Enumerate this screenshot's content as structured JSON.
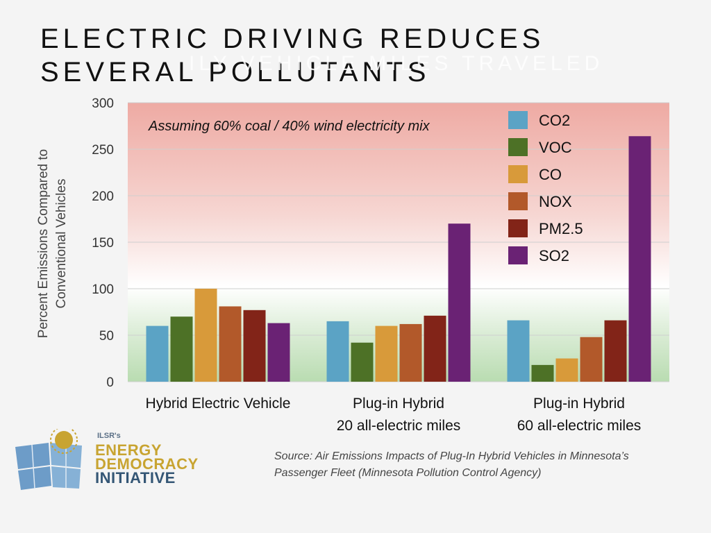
{
  "slide": {
    "title": "ELECTRIC DRIVING REDUCES SEVERAL POLLUTANTS",
    "ghost_text": "ILY VEHICLE MILES TRAVELED",
    "source": "Source: Air Emissions Impacts of Plug-In Hybrid Vehicles in Minnesota’s Passenger Fleet (Minnesota Pollution Control Agency)",
    "logo": {
      "tagline": "ILSR's",
      "line1": "ENERGY",
      "line2": "DEMOCRACY",
      "line3": "INITIATIVE"
    }
  },
  "chart_data": {
    "type": "bar",
    "ylabel": "Percent Emissions Compared to Conventional Vehicles",
    "ylabel_lines": [
      "Percent Emissions Compared to",
      "Conventional Vehicles"
    ],
    "ylim": [
      0,
      300
    ],
    "yticks": [
      0,
      50,
      100,
      150,
      200,
      250,
      300
    ],
    "grid": true,
    "annotation": "Assuming 60% coal / 40% wind electricity mix",
    "legend_position": "top-right",
    "categories": [
      [
        "Hybrid Electric Vehicle"
      ],
      [
        "Plug-in Hybrid",
        "20 all-electric miles"
      ],
      [
        "Plug-in Hybrid",
        "60 all-electric miles"
      ]
    ],
    "series": [
      {
        "name": "CO2",
        "color": "#5ba3c5",
        "values": [
          60,
          65,
          66
        ]
      },
      {
        "name": "VOC",
        "color": "#4d7126",
        "values": [
          70,
          42,
          18
        ]
      },
      {
        "name": "CO",
        "color": "#d89a3a",
        "values": [
          100,
          60,
          25
        ]
      },
      {
        "name": "NOX",
        "color": "#b2592a",
        "values": [
          81,
          62,
          48
        ]
      },
      {
        "name": "PM2.5",
        "color": "#822418",
        "values": [
          77,
          71,
          66
        ]
      },
      {
        "name": "SO2",
        "color": "#6a2274",
        "values": [
          63,
          170,
          264
        ]
      }
    ]
  }
}
